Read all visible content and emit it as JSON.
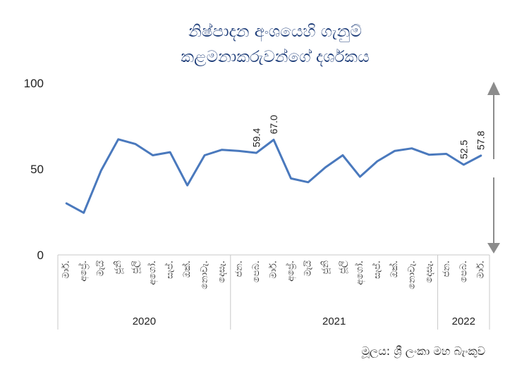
{
  "chart_data": {
    "type": "line",
    "title": [
      "නිෂ්පාදන අංශයෙහි ගැනුම්",
      "කළමනාකරුවන්ගේ දර්ශකය"
    ],
    "ylim": [
      0,
      100
    ],
    "yticks": [
      0,
      50,
      100
    ],
    "categories": [
      "මාර්.",
      "අප්‍රේ.",
      "මැයි",
      "ජූනි",
      "ජූලි",
      "අගෝ.",
      "සැප්.",
      "ඔක්.",
      "නොවැ.",
      "දෙසැ.",
      "ජන.",
      "පෙබ.",
      "මාර්.",
      "අප්‍රේ.",
      "මැයි",
      "ජූනි",
      "ජූලි",
      "අගෝ.",
      "සැප්.",
      "ඔක්.",
      "නොවැ.",
      "දෙසැ.",
      "ජන.",
      "පෙබ.",
      "මාර්."
    ],
    "years": [
      {
        "label": "2020",
        "start": 0,
        "end": 9
      },
      {
        "label": "2021",
        "start": 10,
        "end": 21
      },
      {
        "label": "2022",
        "start": 22,
        "end": 24
      }
    ],
    "series": [
      {
        "values": [
          30.0,
          24.5,
          49.0,
          67.3,
          64.5,
          58.0,
          59.8,
          40.5,
          58.0,
          61.2,
          60.5,
          59.4,
          67.0,
          44.5,
          42.3,
          51.0,
          58.0,
          45.5,
          54.5,
          60.5,
          62.0,
          58.3,
          58.8,
          52.5,
          57.8
        ],
        "color": "#4a79bd"
      }
    ],
    "data_labels": [
      {
        "index": 11,
        "text": "59.4"
      },
      {
        "index": 12,
        "text": "67.0"
      },
      {
        "index": 23,
        "text": "52.5"
      },
      {
        "index": 24,
        "text": "57.8"
      }
    ],
    "threshold_marker": {
      "upper": [
        50,
        100
      ],
      "lower": [
        0,
        50
      ],
      "color": "#8c8c8c"
    },
    "source": "මූලය: ශ්‍රී ලංකා මහ බැංකුව"
  }
}
